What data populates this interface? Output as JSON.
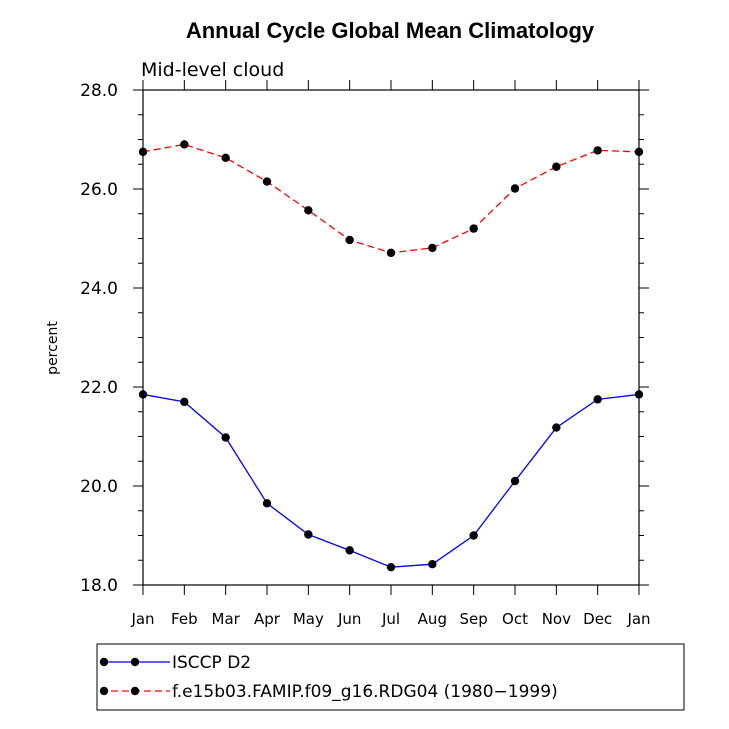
{
  "chart_data": {
    "type": "line",
    "title": "Annual Cycle Global Mean Climatology",
    "subtitle": "Mid-level cloud",
    "xlabel": "",
    "ylabel": "percent",
    "categories": [
      "Jan",
      "Feb",
      "Mar",
      "Apr",
      "May",
      "Jun",
      "Jul",
      "Aug",
      "Sep",
      "Oct",
      "Nov",
      "Dec",
      "Jan"
    ],
    "ylim": [
      18.0,
      28.0
    ],
    "yticks": [
      "18.0",
      "20.0",
      "22.0",
      "24.0",
      "26.0",
      "28.0"
    ],
    "grid": false,
    "legend_position": "bottom",
    "series": [
      {
        "name": "ISCCP D2",
        "color": "#0000ff",
        "dash": "solid",
        "values": [
          21.85,
          21.7,
          20.98,
          19.65,
          19.02,
          18.7,
          18.36,
          18.42,
          19.0,
          20.1,
          21.18,
          21.75,
          21.85
        ]
      },
      {
        "name": "f.e15b03.FAMIP.f09_g16.RDG04 (1980−1999)",
        "color": "#ff0000",
        "dash": "dashed",
        "values": [
          26.75,
          26.9,
          26.63,
          26.15,
          25.57,
          24.97,
          24.71,
          24.81,
          25.2,
          26.01,
          26.45,
          26.78,
          26.75
        ]
      }
    ]
  }
}
